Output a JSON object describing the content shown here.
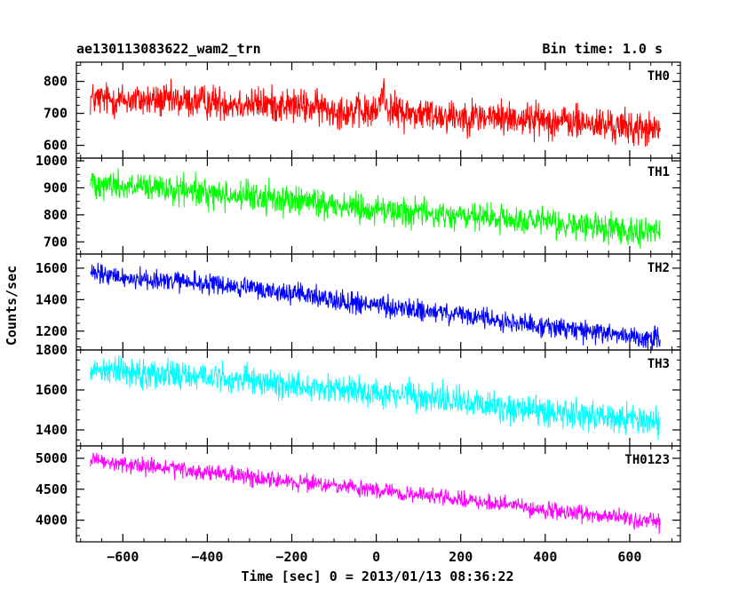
{
  "chart_data": {
    "type": "line",
    "title": "ae130113083622_wam2_trn",
    "subtitle": "Bin time: 1.0 s",
    "xlabel": "Time [sec] 0 = 2013/01/13 08:36:22",
    "ylabel": "Counts/sec",
    "xlim": [
      -710,
      720
    ],
    "x_ticks": [
      -600,
      -400,
      -200,
      0,
      200,
      400,
      600
    ],
    "x_tick_labels": [
      "−600",
      "−400",
      "−200",
      "0",
      "200",
      "400",
      "600"
    ],
    "data_x_range": [
      -677,
      672
    ],
    "bin_time": 1.0,
    "grid": false,
    "panels": [
      {
        "name": "TH0",
        "color": "#ff0000",
        "ylim": [
          560,
          860
        ],
        "y_ticks": [
          600,
          700,
          800
        ],
        "x": [
          -677,
          -600,
          -400,
          -200,
          -50,
          0,
          8,
          15,
          25,
          40,
          80,
          200,
          400,
          600,
          672
        ],
        "values": [
          745,
          742,
          736,
          725,
          705,
          700,
          735,
          775,
          725,
          708,
          700,
          692,
          680,
          655,
          645
        ],
        "noise_amplitude": 45
      },
      {
        "name": "TH1",
        "color": "#00ff00",
        "ylim": [
          655,
          1010
        ],
        "y_ticks": [
          700,
          800,
          900,
          1000
        ],
        "x": [
          -677,
          -600,
          -400,
          -200,
          0,
          200,
          400,
          600,
          672
        ],
        "values": [
          925,
          905,
          880,
          855,
          820,
          795,
          770,
          745,
          735
        ],
        "noise_amplitude": 45
      },
      {
        "name": "TH2",
        "color": "#0000ff",
        "ylim": [
          1080,
          1690
        ],
        "y_ticks": [
          1200,
          1400,
          1600
        ],
        "x": [
          -677,
          -600,
          -400,
          -200,
          0,
          200,
          400,
          600,
          672
        ],
        "values": [
          1565,
          1540,
          1500,
          1440,
          1360,
          1300,
          1230,
          1170,
          1150
        ],
        "noise_amplitude": 55
      },
      {
        "name": "TH3",
        "color": "#00ffff",
        "ylim": [
          1320,
          1800
        ],
        "y_ticks": [
          1400,
          1600,
          1800
        ],
        "x": [
          -677,
          -600,
          -400,
          -200,
          0,
          200,
          400,
          600,
          672
        ],
        "values": [
          1710,
          1695,
          1665,
          1625,
          1590,
          1540,
          1495,
          1455,
          1440
        ],
        "noise_amplitude": 60
      },
      {
        "name": "TH0123",
        "color": "#ff00ff",
        "ylim": [
          3650,
          5200
        ],
        "y_ticks": [
          4000,
          4500,
          5000
        ],
        "x": [
          -677,
          -600,
          -400,
          -200,
          0,
          200,
          400,
          600,
          672
        ],
        "values": [
          4960,
          4900,
          4770,
          4620,
          4480,
          4330,
          4160,
          4020,
          3960
        ],
        "noise_amplitude": 110
      }
    ]
  }
}
